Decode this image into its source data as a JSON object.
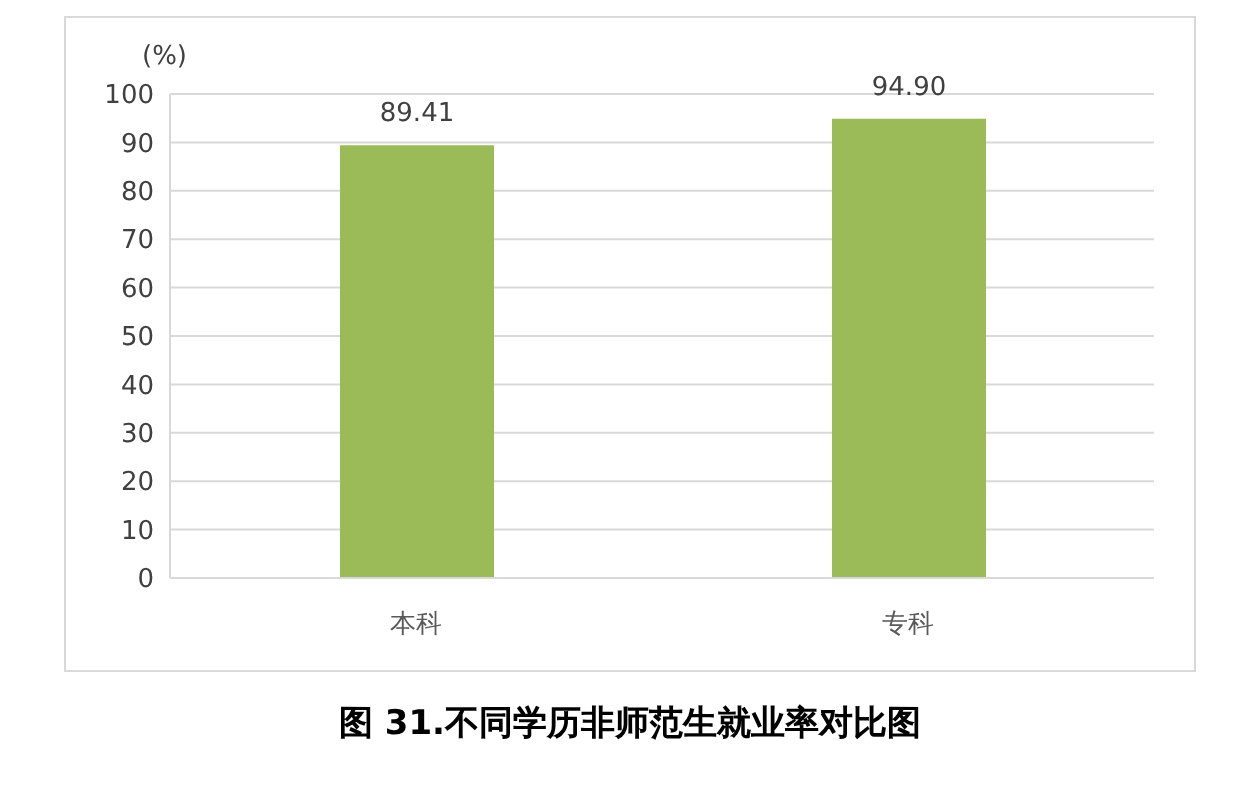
{
  "chart_data": {
    "type": "bar",
    "title": "图 31.不同学历非师范生就业率对比图",
    "ylabel": "(%)",
    "categories": [
      "本科",
      "专科"
    ],
    "values": [
      89.41,
      94.9
    ],
    "value_labels": [
      "89.41",
      "94.90"
    ],
    "color": "#9bbb59",
    "ylim": [
      0,
      100
    ],
    "yticks": [
      0,
      10,
      20,
      30,
      40,
      50,
      60,
      70,
      80,
      90,
      100
    ],
    "grid": "y"
  }
}
